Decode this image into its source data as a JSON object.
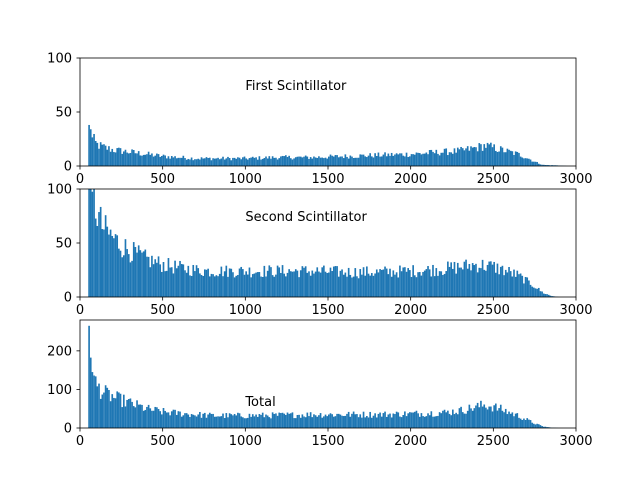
{
  "chart_data": [
    {
      "type": "bar",
      "histogram": true,
      "annotation": "First Scintillator",
      "xlim": [
        0,
        3000
      ],
      "ylim": [
        0,
        100
      ],
      "xticks": [
        0,
        500,
        1000,
        1500,
        2000,
        2500,
        3000
      ],
      "yticks": [
        0,
        50,
        100
      ],
      "bin_width": 10,
      "bar_color": "#1f77b4",
      "annotation_x": 1000,
      "annotation_y": 75,
      "envelope": [
        [
          50,
          0
        ],
        [
          55,
          38
        ],
        [
          60,
          40
        ],
        [
          70,
          28
        ],
        [
          80,
          25
        ],
        [
          100,
          20
        ],
        [
          150,
          17
        ],
        [
          200,
          15
        ],
        [
          300,
          13
        ],
        [
          400,
          11
        ],
        [
          500,
          9
        ],
        [
          600,
          8
        ],
        [
          700,
          7
        ],
        [
          800,
          7
        ],
        [
          900,
          7
        ],
        [
          1000,
          7
        ],
        [
          1200,
          8
        ],
        [
          1400,
          8
        ],
        [
          1600,
          9
        ],
        [
          1800,
          10
        ],
        [
          2000,
          11
        ],
        [
          2100,
          12
        ],
        [
          2200,
          13
        ],
        [
          2300,
          14
        ],
        [
          2400,
          17
        ],
        [
          2450,
          19
        ],
        [
          2500,
          17
        ],
        [
          2550,
          15
        ],
        [
          2600,
          13
        ],
        [
          2650,
          11
        ],
        [
          2700,
          8
        ],
        [
          2750,
          4
        ],
        [
          2800,
          1
        ],
        [
          2900,
          0.5
        ],
        [
          2950,
          0
        ]
      ]
    },
    {
      "type": "bar",
      "histogram": true,
      "annotation": "Second Scintillator",
      "xlim": [
        0,
        3000
      ],
      "ylim": [
        0,
        100
      ],
      "xticks": [
        0,
        500,
        1000,
        1500,
        2000,
        2500,
        3000
      ],
      "yticks": [
        0,
        50,
        100
      ],
      "bin_width": 10,
      "bar_color": "#1f77b4",
      "annotation_x": 1000,
      "annotation_y": 75,
      "envelope": [
        [
          50,
          0
        ],
        [
          55,
          100
        ],
        [
          60,
          100
        ],
        [
          70,
          100
        ],
        [
          80,
          95
        ],
        [
          100,
          80
        ],
        [
          120,
          70
        ],
        [
          150,
          62
        ],
        [
          200,
          55
        ],
        [
          250,
          48
        ],
        [
          300,
          43
        ],
        [
          400,
          35
        ],
        [
          500,
          30
        ],
        [
          600,
          27
        ],
        [
          700,
          25
        ],
        [
          800,
          24
        ],
        [
          900,
          24
        ],
        [
          1000,
          24
        ],
        [
          1200,
          24
        ],
        [
          1400,
          24
        ],
        [
          1600,
          23
        ],
        [
          1800,
          23
        ],
        [
          2000,
          24
        ],
        [
          2100,
          25
        ],
        [
          2200,
          26
        ],
        [
          2300,
          28
        ],
        [
          2400,
          30
        ],
        [
          2500,
          28
        ],
        [
          2600,
          23
        ],
        [
          2650,
          20
        ],
        [
          2700,
          15
        ],
        [
          2750,
          10
        ],
        [
          2800,
          4
        ],
        [
          2850,
          1
        ],
        [
          2900,
          0
        ]
      ]
    },
    {
      "type": "bar",
      "histogram": true,
      "annotation": "Total",
      "xlim": [
        0,
        3000
      ],
      "ylim": [
        0,
        280
      ],
      "xticks": [
        0,
        500,
        1000,
        1500,
        2000,
        2500,
        3000
      ],
      "yticks": [
        0,
        100,
        200
      ],
      "bin_width": 10,
      "bar_color": "#1f77b4",
      "annotation_x": 1000,
      "annotation_y": 70,
      "envelope": [
        [
          50,
          0
        ],
        [
          55,
          265
        ],
        [
          60,
          205
        ],
        [
          70,
          160
        ],
        [
          80,
          130
        ],
        [
          100,
          110
        ],
        [
          150,
          90
        ],
        [
          200,
          80
        ],
        [
          300,
          65
        ],
        [
          400,
          50
        ],
        [
          500,
          42
        ],
        [
          600,
          38
        ],
        [
          700,
          35
        ],
        [
          800,
          32
        ],
        [
          900,
          32
        ],
        [
          1000,
          32
        ],
        [
          1200,
          33
        ],
        [
          1400,
          35
        ],
        [
          1600,
          35
        ],
        [
          1800,
          35
        ],
        [
          2000,
          37
        ],
        [
          2200,
          40
        ],
        [
          2300,
          45
        ],
        [
          2400,
          55
        ],
        [
          2450,
          60
        ],
        [
          2500,
          55
        ],
        [
          2550,
          48
        ],
        [
          2600,
          40
        ],
        [
          2650,
          32
        ],
        [
          2700,
          22
        ],
        [
          2750,
          12
        ],
        [
          2800,
          4
        ],
        [
          2850,
          1
        ],
        [
          2900,
          0
        ]
      ]
    }
  ]
}
